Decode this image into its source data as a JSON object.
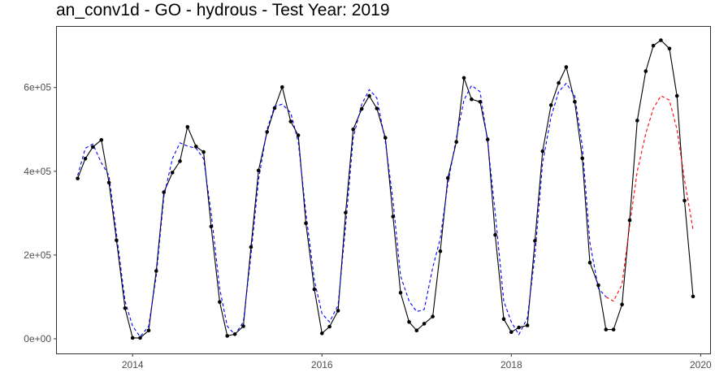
{
  "chart_data": {
    "type": "line",
    "title": "an_conv1d - GO - hydrous - Test Year: 2019",
    "xlabel": "",
    "ylabel": "",
    "xlim": [
      2013.2,
      2020.1
    ],
    "ylim": [
      -35000,
      745000
    ],
    "x_ticks": [
      2014,
      2016,
      2018,
      2020
    ],
    "x_tick_labels": [
      "2014",
      "2016",
      "2018",
      "2020"
    ],
    "y_ticks": [
      0,
      200000,
      400000,
      600000
    ],
    "y_tick_labels": [
      "0e+00",
      "2e+05",
      "4e+05",
      "6e+05"
    ],
    "grid": false,
    "colors": {
      "actual": "#000000",
      "fitted": "#0000ff",
      "forecast": "#ff0000"
    },
    "series": [
      {
        "style": "solid-line-with-points",
        "color": "#000000",
        "x": [
          2013.42,
          2013.5,
          2013.58,
          2013.67,
          2013.75,
          2013.83,
          2013.92,
          2014.0,
          2014.08,
          2014.17,
          2014.25,
          2014.33,
          2014.42,
          2014.5,
          2014.58,
          2014.67,
          2014.75,
          2014.83,
          2014.92,
          2015.0,
          2015.08,
          2015.17,
          2015.25,
          2015.33,
          2015.42,
          2015.5,
          2015.58,
          2015.67,
          2015.75,
          2015.83,
          2015.92,
          2016.0,
          2016.08,
          2016.17,
          2016.25,
          2016.33,
          2016.42,
          2016.5,
          2016.58,
          2016.67,
          2016.75,
          2016.83,
          2016.92,
          2017.0,
          2017.08,
          2017.17,
          2017.25,
          2017.33,
          2017.42,
          2017.5,
          2017.58,
          2017.67,
          2017.75,
          2017.83,
          2017.92,
          2018.0,
          2018.08,
          2018.17,
          2018.25,
          2018.33,
          2018.42,
          2018.5,
          2018.58,
          2018.67,
          2018.75,
          2018.83,
          2018.92,
          2019.0,
          2019.08,
          2019.17,
          2019.25,
          2019.33,
          2019.42,
          2019.5,
          2019.58,
          2019.67,
          2019.75,
          2019.83,
          2019.92
        ],
        "values": [
          383000,
          430000,
          458000,
          475000,
          373000,
          235000,
          73000,
          2000,
          2000,
          20000,
          162000,
          350000,
          397000,
          424000,
          506000,
          459000,
          446000,
          268000,
          88000,
          7000,
          11000,
          30000,
          219000,
          402000,
          494000,
          551000,
          601000,
          519000,
          486000,
          276000,
          118000,
          13000,
          29000,
          67000,
          301000,
          500000,
          549000,
          580000,
          550000,
          480000,
          292000,
          110000,
          40000,
          20000,
          36000,
          53000,
          209000,
          384000,
          470000,
          623000,
          572000,
          566000,
          476000,
          248000,
          47000,
          16000,
          27000,
          32000,
          234000,
          448000,
          558000,
          611000,
          649000,
          566000,
          431000,
          182000,
          128000,
          22000,
          22000,
          82000,
          283000,
          521000,
          639000,
          700000,
          713000,
          693000,
          580000,
          330000,
          101000
        ]
      },
      {
        "style": "dashed-line",
        "color": "#0000ff",
        "x": [
          2013.42,
          2013.5,
          2013.58,
          2013.67,
          2013.75,
          2013.83,
          2013.92,
          2014.0,
          2014.08,
          2014.17,
          2014.25,
          2014.33,
          2014.42,
          2014.5,
          2014.58,
          2014.67,
          2014.75,
          2014.83,
          2014.92,
          2015.0,
          2015.08,
          2015.17,
          2015.25,
          2015.33,
          2015.42,
          2015.5,
          2015.58,
          2015.67,
          2015.75,
          2015.83,
          2015.92,
          2016.0,
          2016.08,
          2016.17,
          2016.25,
          2016.33,
          2016.42,
          2016.5,
          2016.58,
          2016.67,
          2016.75,
          2016.83,
          2016.92,
          2017.0,
          2017.08,
          2017.17,
          2017.25,
          2017.33,
          2017.42,
          2017.5,
          2017.58,
          2017.67,
          2017.75,
          2017.83,
          2017.92,
          2018.0,
          2018.08,
          2018.17,
          2018.25,
          2018.33,
          2018.42,
          2018.5,
          2018.58,
          2018.67,
          2018.75,
          2018.83,
          2018.92,
          2019.0
        ],
        "values": [
          390000,
          455000,
          465000,
          420000,
          390000,
          250000,
          90000,
          30000,
          5000,
          30000,
          150000,
          340000,
          430000,
          468000,
          460000,
          455000,
          430000,
          300000,
          120000,
          30000,
          10000,
          40000,
          200000,
          380000,
          500000,
          555000,
          560000,
          540000,
          470000,
          300000,
          140000,
          60000,
          40000,
          80000,
          270000,
          480000,
          560000,
          595000,
          575000,
          470000,
          330000,
          150000,
          90000,
          65000,
          70000,
          170000,
          240000,
          370000,
          480000,
          570000,
          605000,
          590000,
          470000,
          300000,
          90000,
          40000,
          10000,
          50000,
          200000,
          420000,
          530000,
          590000,
          610000,
          580000,
          460000,
          230000,
          120000,
          100000
        ]
      },
      {
        "style": "dashed-line",
        "color": "#ff0000",
        "x": [
          2019.0,
          2019.08,
          2019.17,
          2019.25,
          2019.33,
          2019.42,
          2019.5,
          2019.58,
          2019.67,
          2019.75,
          2019.83,
          2019.92
        ],
        "values": [
          100000,
          90000,
          130000,
          270000,
          400000,
          490000,
          550000,
          580000,
          570000,
          500000,
          380000,
          260000
        ]
      }
    ]
  }
}
